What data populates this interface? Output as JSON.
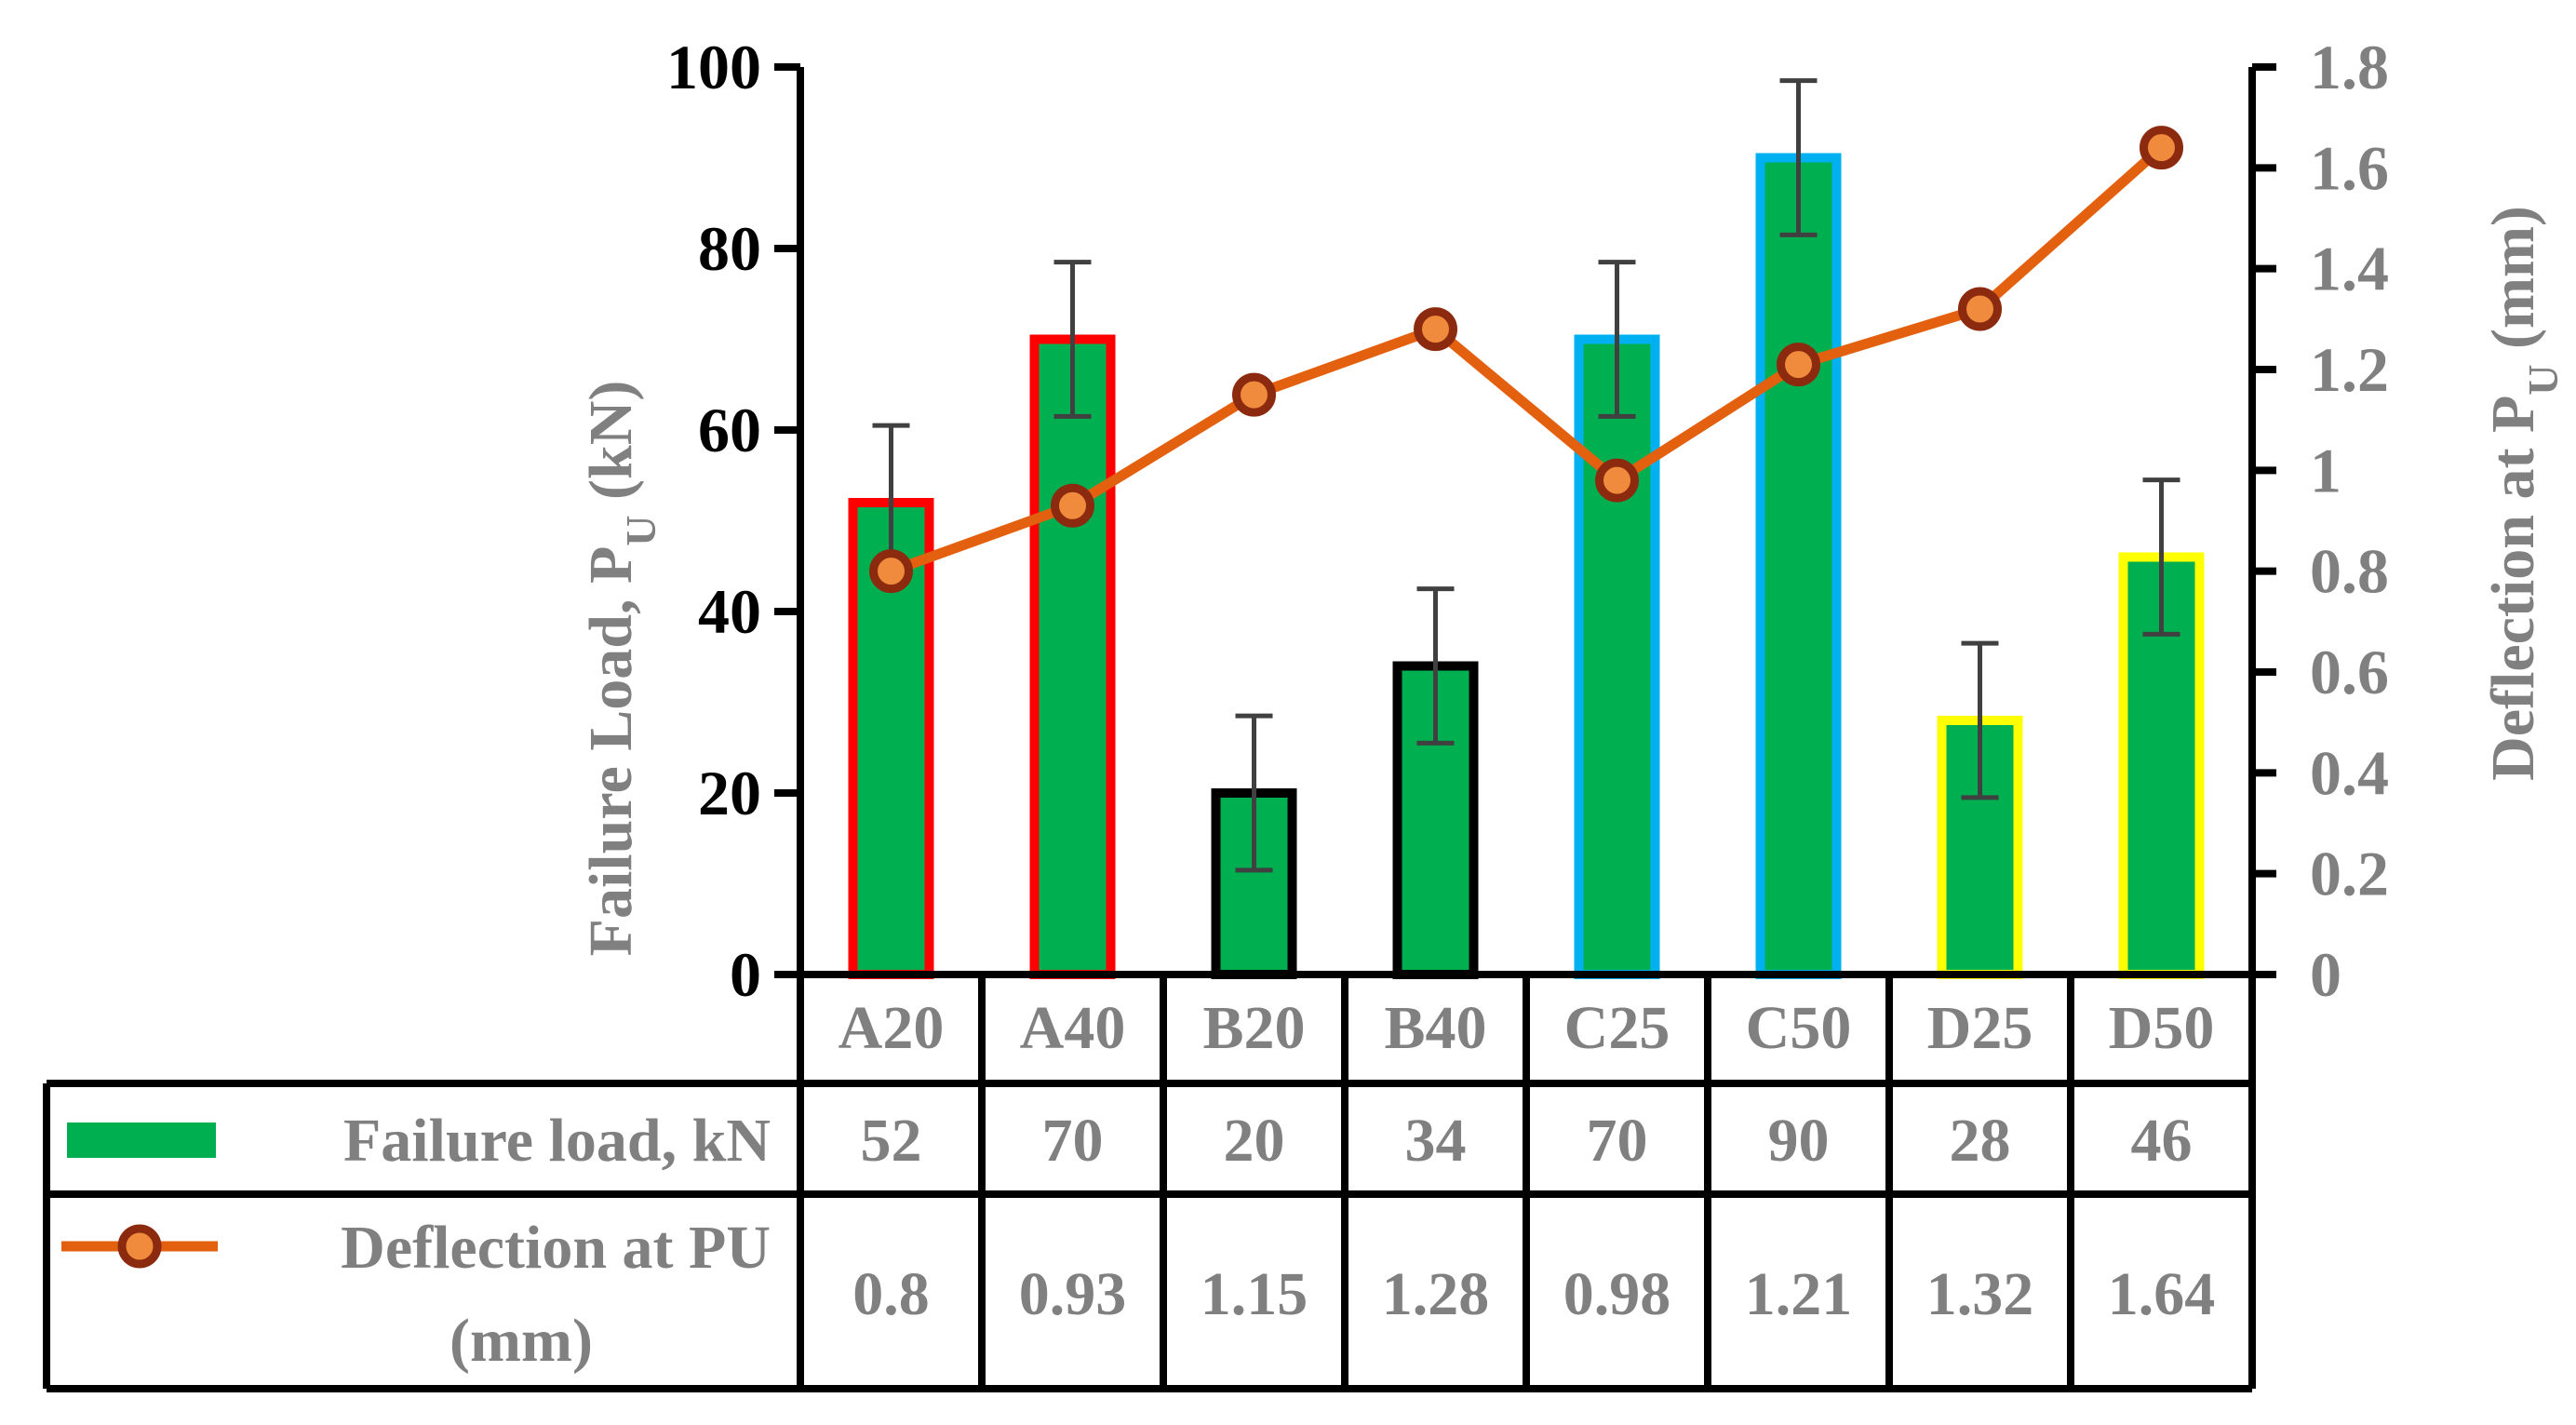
{
  "chart_data": {
    "type": "bar",
    "categories": [
      "A20",
      "A40",
      "B20",
      "B40",
      "C25",
      "C50",
      "D25",
      "D50"
    ],
    "series": [
      {
        "name": "Failure load, kN",
        "kind": "bar",
        "axis": "left",
        "values": [
          52,
          70,
          20,
          34,
          70,
          90,
          28,
          46
        ],
        "error": [
          8.5,
          8.5,
          8.5,
          8.5,
          8.5,
          8.5,
          8.5,
          8.5
        ],
        "color": "#00B050",
        "outline_colors": [
          "#FF0000",
          "#FF0000",
          "#000000",
          "#000000",
          "#00B0F0",
          "#00B0F0",
          "#FFFF00",
          "#FFFF00"
        ]
      },
      {
        "name": "Deflection at PU (mm)",
        "kind": "line",
        "axis": "right",
        "values": [
          0.8,
          0.93,
          1.15,
          1.28,
          0.98,
          1.21,
          1.32,
          1.64
        ],
        "color": "#E3600F",
        "marker_fill": "#F08A3C",
        "marker_edge": "#8B2A0E"
      }
    ],
    "y_left": {
      "title_main": "Failure Load, P",
      "title_sub": "U",
      "title_unit": " (kN)",
      "ylim": [
        0,
        100
      ],
      "ticks": [
        "0",
        "20",
        "40",
        "60",
        "80",
        "100"
      ]
    },
    "y_right": {
      "title_main": "Deflection at P",
      "title_sub": "U",
      "title_unit": " (mm)",
      "ylim": [
        0,
        1.8
      ],
      "ticks": [
        "0",
        "0.2",
        "0.4",
        "0.6",
        "0.8",
        "1",
        "1.2",
        "1.4",
        "1.6",
        "1.8"
      ]
    },
    "data_table": {
      "rows": [
        {
          "legend": [
            "Failure load, kN"
          ],
          "cells": [
            "52",
            "70",
            "20",
            "34",
            "70",
            "90",
            "28",
            "46"
          ]
        },
        {
          "legend": [
            "Deflection at PU",
            "(mm)"
          ],
          "cells": [
            "0.8",
            "0.93",
            "1.15",
            "1.28",
            "0.98",
            "1.21",
            "1.32",
            "1.64"
          ]
        }
      ]
    }
  }
}
